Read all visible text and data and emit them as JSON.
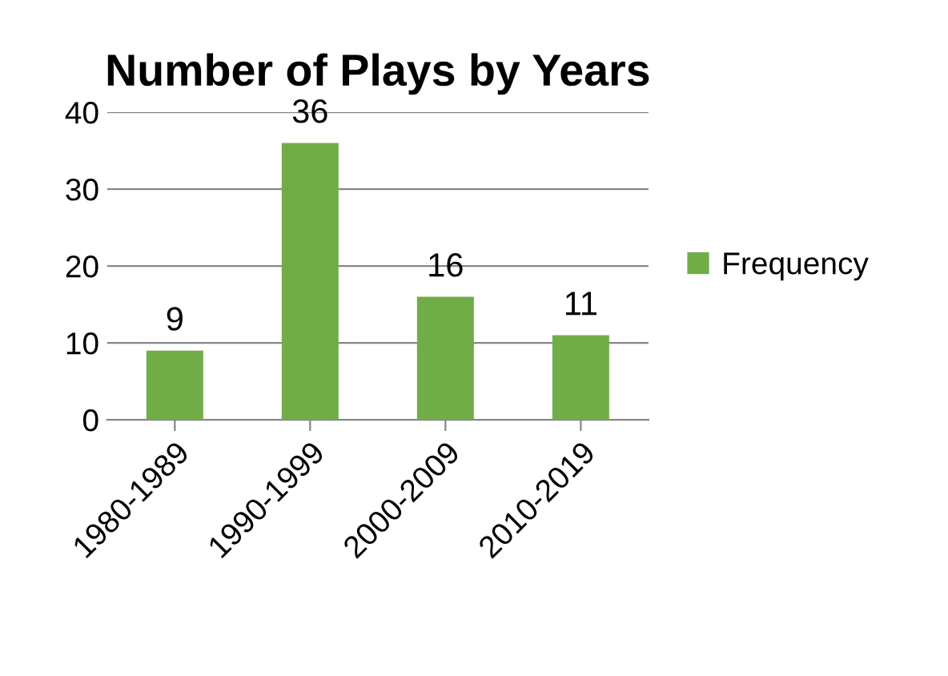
{
  "chart_data": {
    "type": "bar",
    "title": "Number of Plays by Years",
    "categories": [
      "1980-1989",
      "1990-1999",
      "2000-2009",
      "2010-2019"
    ],
    "series": [
      {
        "name": "Frequency",
        "color": "#70ad47",
        "values": [
          9,
          36,
          16,
          11
        ]
      }
    ],
    "ylim": [
      0,
      40
    ],
    "yticks": [
      0,
      10,
      20,
      30,
      40
    ],
    "grid": "y",
    "legend": "right",
    "data_labels": true
  }
}
